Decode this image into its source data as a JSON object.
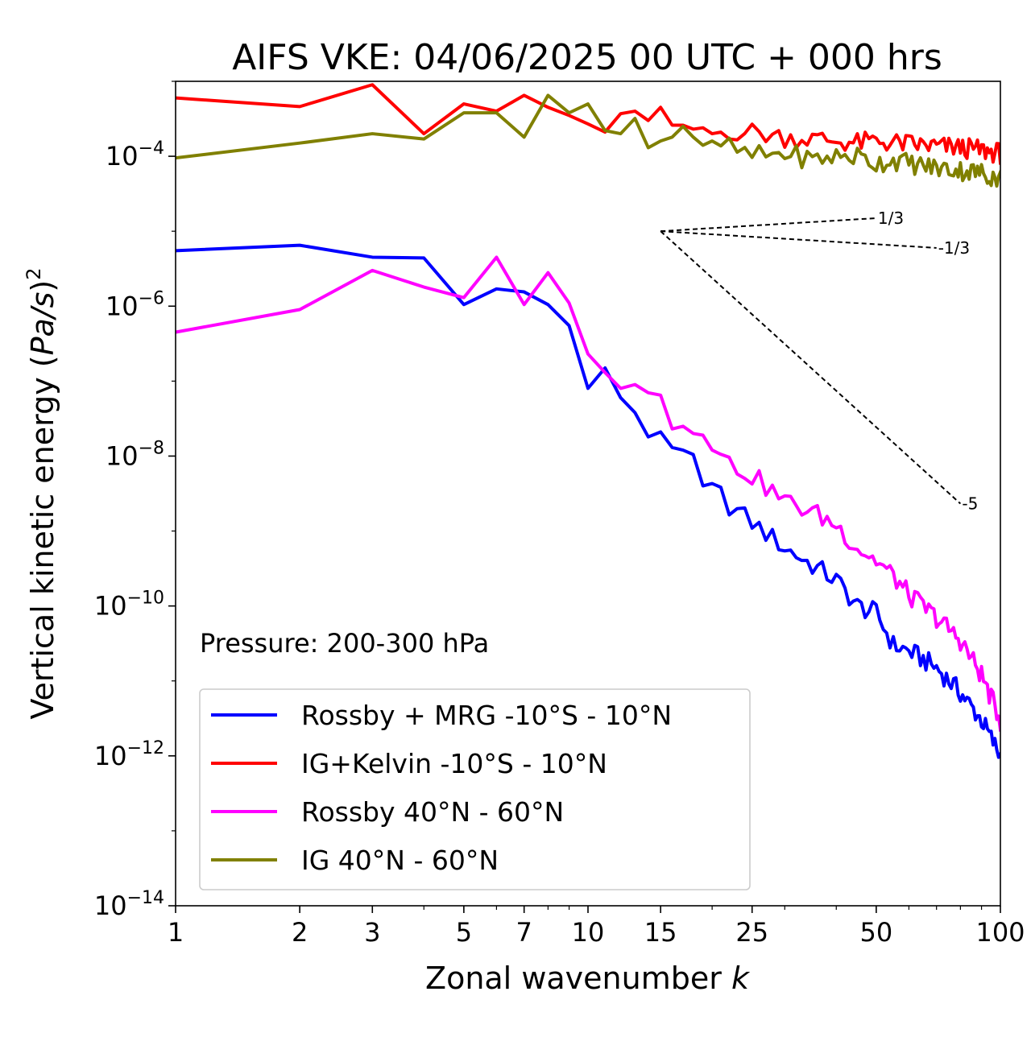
{
  "chart_data": {
    "type": "line",
    "title": "AIFS VKE: 04/06/2025 00 UTC + 000 hrs",
    "xlabel": "Zonal wavenumber k",
    "xlabel_text": "Zonal wavenumber ",
    "xlabel_var": "k",
    "ylabel": "Vertical kinetic energy (Pa/s)^2",
    "ylabel_text": "Vertical kinetic energy (",
    "ylabel_var": "Pa/s",
    "ylabel_close": ")",
    "ylabel_exp": "2",
    "xscale": "log",
    "yscale": "log",
    "xlim": [
      1,
      100
    ],
    "ylim": [
      1e-14,
      0.001
    ],
    "xticks": [
      1,
      2,
      3,
      5,
      7,
      10,
      15,
      25,
      50,
      100
    ],
    "xtick_labels": [
      "1",
      "2",
      "3",
      "5",
      "7",
      "10",
      "15",
      "25",
      "50",
      "100"
    ],
    "yticks": [
      {
        "value": 0.0001,
        "base": "10",
        "exp": "−4"
      },
      {
        "value": 1e-06,
        "base": "10",
        "exp": "−6"
      },
      {
        "value": 1e-08,
        "base": "10",
        "exp": "−8"
      },
      {
        "value": 1e-10,
        "base": "10",
        "exp": "−10"
      },
      {
        "value": 1e-12,
        "base": "10",
        "exp": "−12"
      },
      {
        "value": 1e-14,
        "base": "10",
        "exp": "−14"
      }
    ],
    "annotation": "Pressure: 200-300 hPa",
    "legend_position": "lower-left",
    "series": [
      {
        "name": "Rossby + MRG -10°S - 10°N",
        "color": "#0000ff",
        "sample_x": [
          1,
          2,
          3,
          4,
          5,
          6,
          7,
          8,
          9,
          10,
          11,
          12,
          13,
          14,
          15,
          16,
          17,
          18,
          19,
          20,
          22,
          25,
          30,
          35,
          40,
          45,
          50,
          55,
          60,
          70,
          80,
          90,
          100
        ],
        "sample_y": [
          5.5e-06,
          6.5e-06,
          4.5e-06,
          4.4e-06,
          1.05e-06,
          1.7e-06,
          1.55e-06,
          1.05e-06,
          5.5e-07,
          8e-08,
          1.5e-07,
          6e-08,
          3.8e-08,
          1.8e-08,
          2.1e-08,
          1.3e-08,
          1.2e-08,
          1.05e-08,
          4e-09,
          4.3e-09,
          2.2e-09,
          1.3e-09,
          6e-10,
          3.5e-10,
          2.2e-10,
          1e-10,
          8e-11,
          3e-11,
          2.5e-11,
          1.5e-11,
          7e-12,
          3e-12,
          1e-12
        ]
      },
      {
        "name": "IG+Kelvin -10°S - 10°N",
        "color": "#ff0000",
        "sample_x": [
          1,
          2,
          3,
          4,
          5,
          6,
          7,
          8,
          9,
          10,
          11,
          12,
          13,
          14,
          15,
          16,
          17,
          18,
          19,
          20,
          22,
          25,
          30,
          35,
          40,
          45,
          50,
          55,
          60,
          70,
          80,
          90,
          100
        ],
        "sample_y": [
          0.0006,
          0.00046,
          0.0009,
          0.0002,
          0.0005,
          0.0004,
          0.00065,
          0.00045,
          0.00035,
          0.00027,
          0.00021,
          0.00037,
          0.0004,
          0.0003,
          0.00045,
          0.00026,
          0.00026,
          0.00023,
          0.00024,
          0.0002,
          0.00022,
          0.00021,
          0.00018,
          0.00017,
          0.00016,
          0.00015,
          0.00016,
          0.00015,
          0.000145,
          0.000135,
          0.00013,
          0.00012,
          0.00011
        ]
      },
      {
        "name": "Rossby 40°N - 60°N",
        "color": "#ff00ff",
        "sample_x": [
          1,
          2,
          3,
          4,
          5,
          6,
          7,
          8,
          9,
          10,
          11,
          12,
          13,
          14,
          15,
          16,
          17,
          18,
          19,
          20,
          22,
          25,
          30,
          35,
          40,
          45,
          50,
          55,
          60,
          70,
          80,
          90,
          100
        ],
        "sample_y": [
          4.5e-07,
          9e-07,
          3e-06,
          1.8e-06,
          1.3e-06,
          4.5e-06,
          1.05e-06,
          2.8e-06,
          1.1e-06,
          2.3e-07,
          1.3e-07,
          8e-08,
          9e-08,
          7e-08,
          6.5e-08,
          2.3e-08,
          2.5e-08,
          2e-08,
          1.9e-08,
          1.2e-08,
          8e-09,
          5.5e-09,
          2.5e-09,
          1.8e-09,
          1.2e-09,
          6e-10,
          4e-10,
          2.5e-10,
          1.4e-10,
          7e-11,
          3.5e-11,
          1.2e-11,
          3e-12
        ]
      },
      {
        "name": "IG 40°N - 60°N",
        "color": "#808000",
        "sample_x": [
          1,
          2,
          3,
          4,
          5,
          6,
          7,
          8,
          9,
          10,
          11,
          12,
          13,
          14,
          15,
          16,
          17,
          18,
          19,
          20,
          22,
          25,
          30,
          35,
          40,
          45,
          50,
          55,
          60,
          70,
          80,
          90,
          100
        ],
        "sample_y": [
          9.5e-05,
          0.00015,
          0.0002,
          0.00017,
          0.00038,
          0.00038,
          0.00018,
          0.00065,
          0.00038,
          0.0005,
          0.00022,
          0.0002,
          0.00032,
          0.00013,
          0.00016,
          0.00018,
          0.00025,
          0.00018,
          0.00014,
          0.00016,
          0.00013,
          0.0001,
          0.00011,
          9e-05,
          0.0001,
          0.0001,
          8e-05,
          9e-05,
          8e-05,
          7e-05,
          6.5e-05,
          6e-05,
          5e-05
        ]
      }
    ],
    "reference_lines": [
      {
        "label": "1/3",
        "slope": 0.3333,
        "x_start": 15,
        "y_start": 1e-05,
        "x_end": 50
      },
      {
        "label": "-1/3",
        "slope": -0.3333,
        "x_start": 15,
        "y_start": 1e-05,
        "x_end": 70
      },
      {
        "label": "-5",
        "slope": -5,
        "x_start": 15,
        "y_start": 1e-05,
        "x_end": 80
      }
    ]
  }
}
